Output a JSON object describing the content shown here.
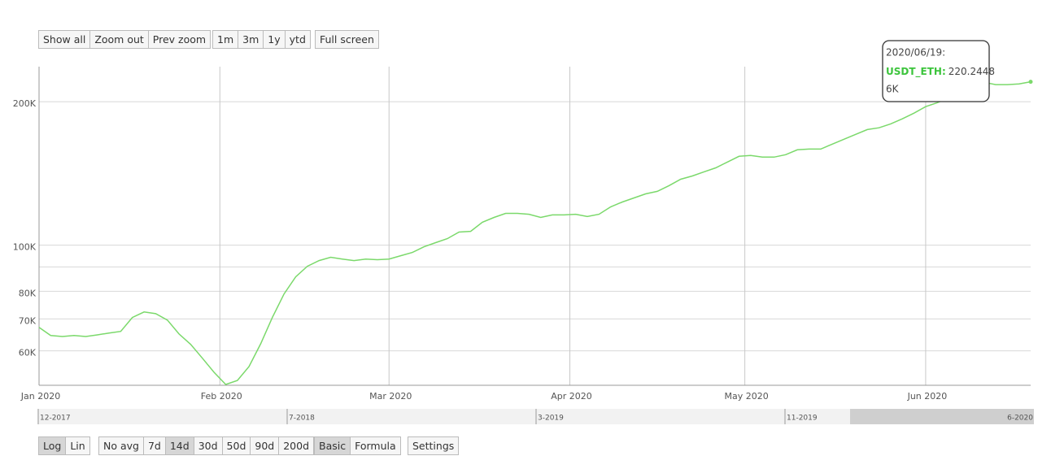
{
  "toolbar": {
    "top": [
      {
        "buttons": [
          "Show all",
          "Zoom out",
          "Prev zoom"
        ]
      },
      {
        "buttons": [
          "1m",
          "3m",
          "1y",
          "ytd"
        ]
      },
      {
        "buttons": [
          "Full screen"
        ]
      }
    ],
    "bottom": [
      {
        "buttons": [
          "Log",
          "Lin"
        ],
        "active": 0
      },
      {
        "buttons": [
          "No avg",
          "7d",
          "14d",
          "30d",
          "50d",
          "90d",
          "200d"
        ],
        "active": 2
      },
      {
        "buttons": [
          "Basic",
          "Formula"
        ],
        "active": 0
      },
      {
        "buttons": [
          "Settings"
        ]
      }
    ]
  },
  "chart_data": {
    "type": "line",
    "log_scale": true,
    "grid": true,
    "x": [
      "2020-01-01",
      "2020-01-03",
      "2020-01-05",
      "2020-01-07",
      "2020-01-09",
      "2020-01-11",
      "2020-01-13",
      "2020-01-15",
      "2020-01-17",
      "2020-01-19",
      "2020-01-21",
      "2020-01-23",
      "2020-01-25",
      "2020-01-27",
      "2020-01-29",
      "2020-01-31",
      "2020-02-02",
      "2020-02-04",
      "2020-02-06",
      "2020-02-08",
      "2020-02-10",
      "2020-02-12",
      "2020-02-14",
      "2020-02-16",
      "2020-02-18",
      "2020-02-20",
      "2020-02-22",
      "2020-02-24",
      "2020-02-26",
      "2020-02-28",
      "2020-03-01",
      "2020-03-03",
      "2020-03-05",
      "2020-03-07",
      "2020-03-09",
      "2020-03-11",
      "2020-03-13",
      "2020-03-15",
      "2020-03-17",
      "2020-03-19",
      "2020-03-21",
      "2020-03-23",
      "2020-03-25",
      "2020-03-27",
      "2020-03-29",
      "2020-03-31",
      "2020-04-02",
      "2020-04-04",
      "2020-04-06",
      "2020-04-08",
      "2020-04-10",
      "2020-04-12",
      "2020-04-14",
      "2020-04-16",
      "2020-04-18",
      "2020-04-20",
      "2020-04-22",
      "2020-04-24",
      "2020-04-26",
      "2020-04-28",
      "2020-04-30",
      "2020-05-02",
      "2020-05-04",
      "2020-05-06",
      "2020-05-08",
      "2020-05-10",
      "2020-05-12",
      "2020-05-14",
      "2020-05-16",
      "2020-05-18",
      "2020-05-20",
      "2020-05-22",
      "2020-05-24",
      "2020-05-26",
      "2020-05-28",
      "2020-05-30",
      "2020-06-01",
      "2020-06-03",
      "2020-06-05",
      "2020-06-07",
      "2020-06-09",
      "2020-06-11",
      "2020-06-13",
      "2020-06-15",
      "2020-06-17",
      "2020-06-19"
    ],
    "series": [
      {
        "color": "#7bd96b",
        "values": [
          67200,
          64600,
          64300,
          64600,
          64300,
          64800,
          65400,
          65900,
          70500,
          72400,
          71800,
          69600,
          65100,
          61900,
          57900,
          54100,
          51000,
          52000,
          55600,
          62100,
          70500,
          79000,
          85800,
          90300,
          92800,
          94300,
          93500,
          92800,
          93500,
          93200,
          93500,
          95000,
          96500,
          99200,
          101200,
          103200,
          106500,
          106900,
          111700,
          114300,
          116600,
          116600,
          116100,
          114300,
          115700,
          115700,
          116100,
          114800,
          116100,
          120300,
          123200,
          125600,
          128100,
          129700,
          133300,
          137500,
          139700,
          142500,
          145300,
          149400,
          153600,
          154200,
          153000,
          153000,
          154800,
          158500,
          159100,
          159100,
          162900,
          166800,
          170800,
          174800,
          176300,
          179700,
          184100,
          189200,
          195300,
          199100,
          203900,
          212900,
          218000,
          219700,
          217200,
          217200,
          218000,
          220200
        ]
      }
    ],
    "xlim": [
      "2020-01-01",
      "2020-06-19"
    ],
    "xticks": [
      {
        "value": "2020-01-01",
        "label": "Jan 2020"
      },
      {
        "value": "2020-02-01",
        "label": "Feb 2020"
      },
      {
        "value": "2020-03-01",
        "label": "Mar 2020"
      },
      {
        "value": "2020-04-01",
        "label": "Apr 2020"
      },
      {
        "value": "2020-05-01",
        "label": "May 2020"
      },
      {
        "value": "2020-06-01",
        "label": "Jun 2020"
      }
    ],
    "ylim": [
      50800,
      236900
    ],
    "yticks": [
      {
        "value": 60000,
        "label": "60K"
      },
      {
        "value": 70000,
        "label": "70K"
      },
      {
        "value": 80000,
        "label": "80K"
      },
      {
        "value": 100000,
        "label": "100K"
      },
      {
        "value": 200000,
        "label": "200K"
      }
    ],
    "y_minor_grid": [
      90000
    ],
    "tooltip": {
      "date": "2020/06/19:",
      "series_label": "USDT_ETH:",
      "value": "220.2448",
      "extra": "6K"
    }
  },
  "navigator": {
    "labels": [
      "12-2017",
      "7-2018",
      "3-2019",
      "11-2019",
      "6-2020"
    ]
  }
}
